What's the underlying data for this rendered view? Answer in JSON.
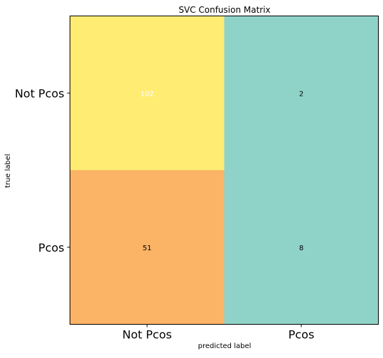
{
  "chart_data": {
    "type": "heatmap",
    "title": "SVC Confusion Matrix",
    "xlabel": "predicted label",
    "ylabel": "true label",
    "x_categories": [
      "Not Pcos",
      "Pcos"
    ],
    "y_categories": [
      "Not Pcos",
      "Pcos"
    ],
    "values": [
      [
        102,
        2
      ],
      [
        51,
        8
      ]
    ],
    "cell_colors": [
      [
        "#ffec73",
        "#8fd3c8"
      ],
      [
        "#fbb466",
        "#8fd3c8"
      ]
    ],
    "cell_text_colors": [
      [
        "#ffffff",
        "#000000"
      ],
      [
        "#000000",
        "#000000"
      ]
    ],
    "grid": false,
    "colorbar": false
  }
}
